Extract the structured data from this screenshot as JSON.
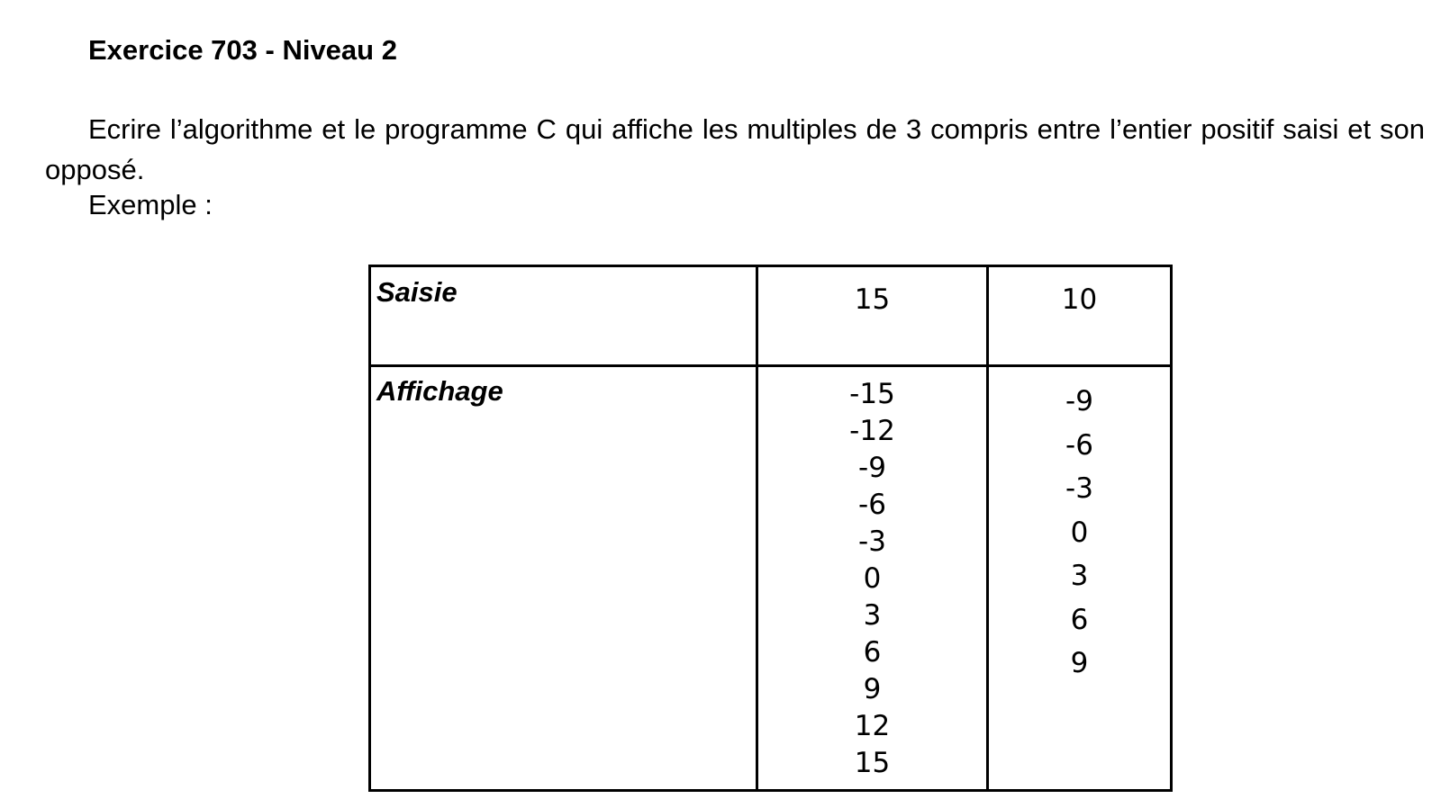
{
  "document": {
    "title": "Exercice 703 - Niveau 2",
    "instruction": "Ecrire l’algorithme et le programme C qui affiche les multiples de 3 compris entre l’entier positif saisi et son opposé.",
    "example_label": "Exemple :"
  },
  "table": {
    "row_labels": {
      "input": "Saisie",
      "output": "Affichage"
    },
    "columns": [
      {
        "input": "15",
        "output": [
          "-15",
          "-12",
          "-9",
          "-6",
          "-3",
          "0",
          "3",
          "6",
          "9",
          "12",
          "15"
        ]
      },
      {
        "input": "10",
        "output": [
          "-9",
          "-6",
          "-3",
          "0",
          "3",
          "6",
          "9"
        ]
      }
    ]
  }
}
